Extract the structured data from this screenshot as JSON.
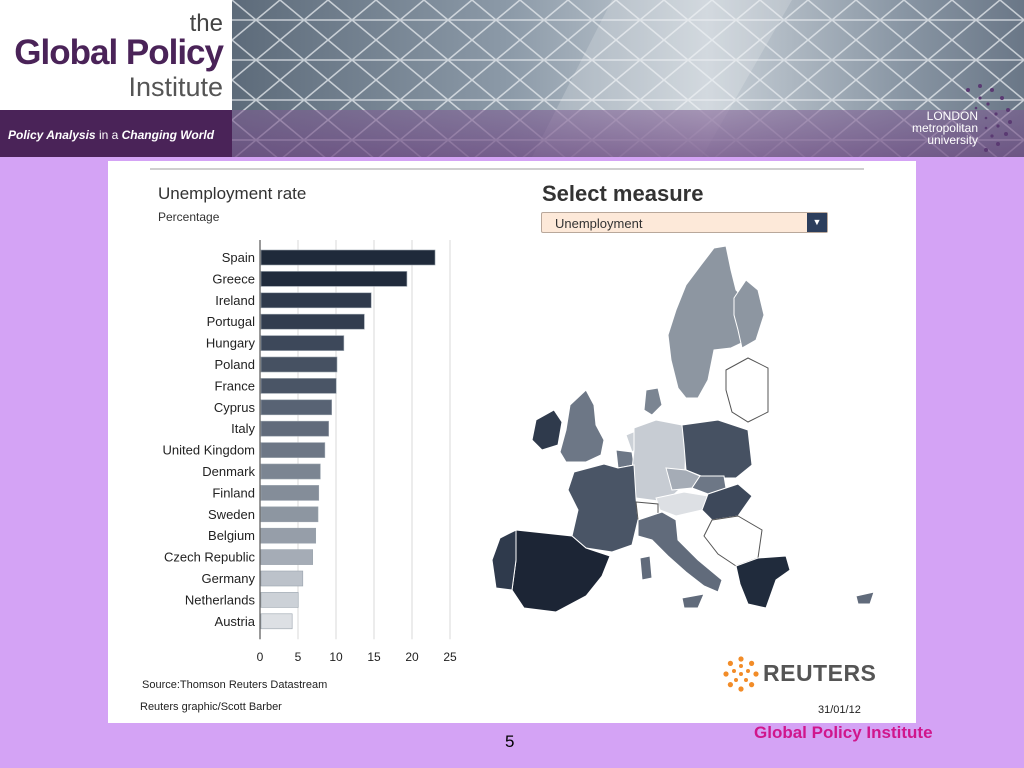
{
  "header": {
    "brand_the": "the",
    "brand_name": "Global Policy",
    "brand_institute": "Institute",
    "tagline_a": "Policy Analysis",
    "tagline_b": " in a ",
    "tagline_c": "Changing World",
    "university_line1": "LONDON",
    "university_line2": "metropolitan",
    "university_line3": "university"
  },
  "chart": {
    "title": "Unemployment rate",
    "subtitle": "Percentage",
    "source": "Source:Thomson Reuters Datastream",
    "credit": "Reuters graphic/Scott Barber",
    "date": "31/01/12"
  },
  "chart_data": {
    "type": "bar",
    "orientation": "horizontal",
    "title": "Unemployment rate",
    "subtitle": "Percentage",
    "xlabel": "",
    "ylabel": "",
    "xlim": [
      0,
      25
    ],
    "xticks": [
      "0",
      "5",
      "10",
      "15",
      "20",
      "25"
    ],
    "grid": true,
    "categories": [
      "Spain",
      "Greece",
      "Ireland",
      "Portugal",
      "Hungary",
      "Poland",
      "France",
      "Cyprus",
      "Italy",
      "United Kingdom",
      "Denmark",
      "Finland",
      "Sweden",
      "Belgium",
      "Czech Republic",
      "Germany",
      "Netherlands",
      "Austria"
    ],
    "values": [
      22.9,
      19.2,
      14.5,
      13.6,
      10.9,
      10.0,
      9.9,
      9.3,
      8.9,
      8.4,
      7.8,
      7.6,
      7.5,
      7.2,
      6.8,
      5.5,
      4.9,
      4.1
    ],
    "colors": [
      "#1f2a3a",
      "#202b3c",
      "#2f3a4c",
      "#323d4f",
      "#3d485a",
      "#465162",
      "#4a5566",
      "#586374",
      "#616b7b",
      "#6d7786",
      "#7b8592",
      "#848d99",
      "#8d96a1",
      "#969ea9",
      "#a5acb6",
      "#bcc2ca",
      "#ccd1d7",
      "#dde0e4"
    ]
  },
  "map": {
    "title": "Select measure",
    "dropdown_value": "Unemployment",
    "colors": {
      "spain": "#1c2535",
      "portugal": "#2f3a4c",
      "france": "#4a5566",
      "uk": "#6d7786",
      "ireland": "#2f3a4c",
      "italy": "#616b7b",
      "germany": "#c7ccd3",
      "poland": "#465162",
      "czech": "#a5acb6",
      "austria": "#dde0e4",
      "hungary": "#3d485a",
      "greece": "#202b3c",
      "scandinavia": "#8d96a1",
      "netherlands": "#ccd1d7",
      "denmark": "#7b8592",
      "slovakia": "#6d7786",
      "balkans": "#ffffff"
    }
  },
  "reuters_label": "REUTERS",
  "footer": {
    "page_number": "5",
    "institute": "Global Policy Institute"
  }
}
